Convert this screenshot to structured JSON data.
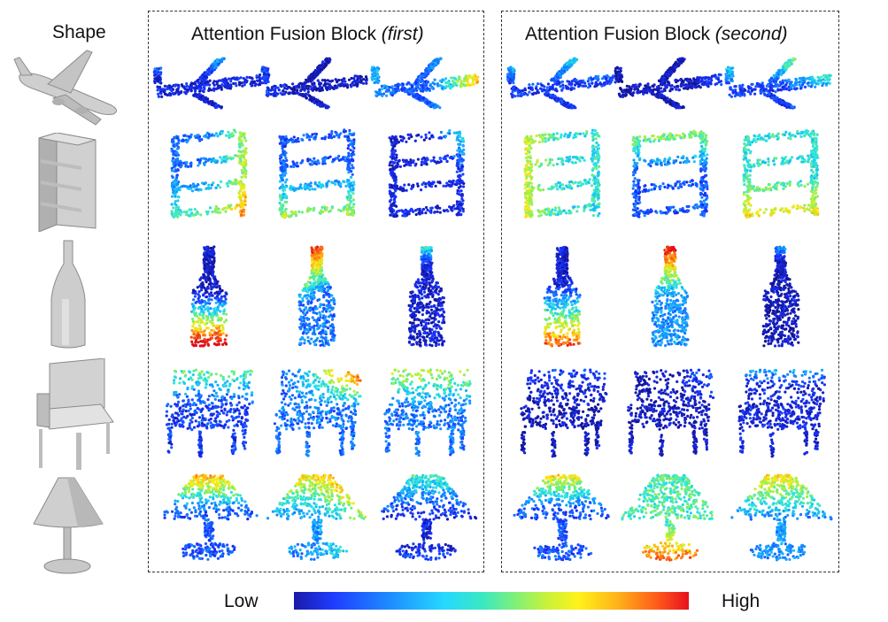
{
  "headers": {
    "shape": "Shape",
    "first_main": "Attention Fusion Block",
    "first_paren": "(first)",
    "second_main": "Attention Fusion Block",
    "second_paren": "(second)"
  },
  "legend": {
    "low": "Low",
    "high": "High"
  },
  "rows": [
    "airplane",
    "bookshelf",
    "bottle",
    "chair",
    "lamp"
  ],
  "colors": {
    "low": "#1a1aa8",
    "mid": "#2cd8c8",
    "high": "#e8101e",
    "border": "#333333",
    "shape_gray": "#bdbdbd"
  }
}
